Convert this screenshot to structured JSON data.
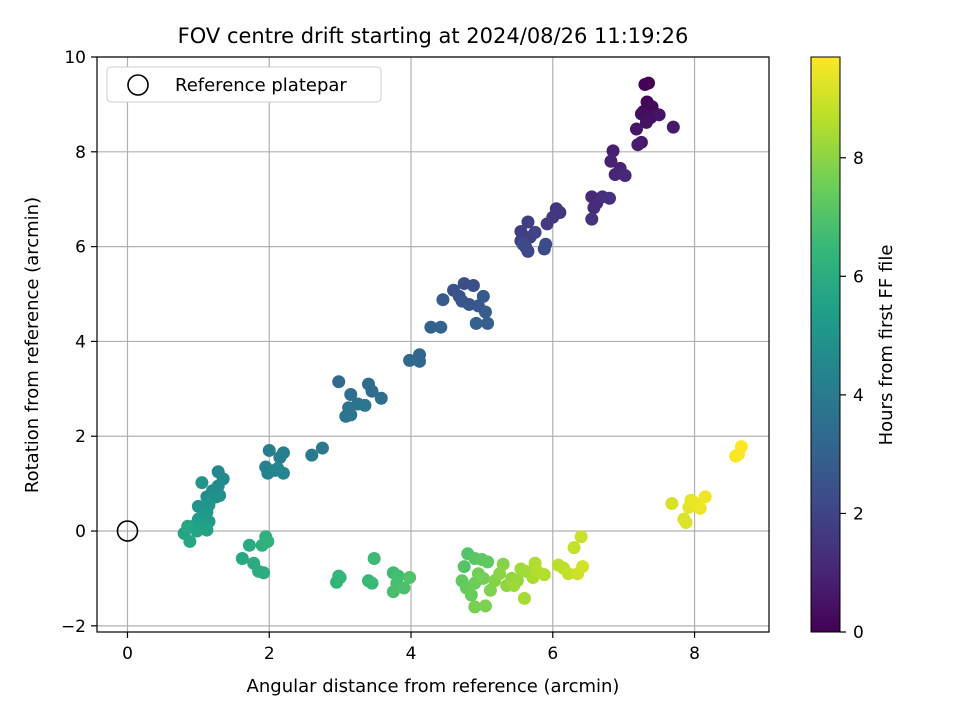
{
  "chart_data": {
    "type": "scatter",
    "title": "FOV centre drift starting at 2024/08/26 11:19:26",
    "xlabel": "Angular distance from reference (arcmin)",
    "ylabel": "Rotation from reference (arcmin)",
    "xlim": [
      -0.43,
      9.05
    ],
    "ylim": [
      -2.13,
      10.0
    ],
    "xticks": [
      0,
      2,
      4,
      6,
      8
    ],
    "yticks": [
      -2,
      0,
      2,
      4,
      6,
      8,
      10
    ],
    "xtick_labels": [
      "0",
      "2",
      "4",
      "6",
      "8"
    ],
    "ytick_labels": [
      "−2",
      "0",
      "2",
      "4",
      "6",
      "8",
      "10"
    ],
    "grid": true,
    "legend": {
      "placement": "top-left",
      "entries": [
        "Reference platepar"
      ]
    },
    "reference": {
      "x": 0,
      "y": 0
    },
    "colorbar": {
      "label": "Hours from first FF file",
      "colormap": "viridis",
      "range": [
        0,
        9.7
      ],
      "ticks": [
        0,
        2,
        4,
        6,
        8
      ],
      "tick_labels": [
        "0",
        "2",
        "4",
        "6",
        "8"
      ],
      "stops": [
        "#440154",
        "#482878",
        "#3e4989",
        "#31688e",
        "#26828e",
        "#1f9e89",
        "#35b779",
        "#6ece58",
        "#b5de2b",
        "#fde725"
      ]
    },
    "series": [
      {
        "points": [
          [
            7.35,
            9.45
          ],
          [
            7.3,
            9.42
          ],
          [
            7.33,
            9.05
          ],
          [
            7.28,
            8.85
          ],
          [
            7.4,
            8.95
          ],
          [
            7.45,
            8.8
          ],
          [
            7.25,
            8.8
          ],
          [
            7.38,
            8.72
          ],
          [
            7.32,
            8.62
          ],
          [
            7.5,
            8.78
          ],
          [
            7.18,
            8.48
          ],
          [
            7.7,
            8.52
          ],
          [
            7.25,
            8.2
          ],
          [
            7.2,
            8.15
          ],
          [
            6.85,
            8.02
          ],
          [
            6.82,
            7.8
          ],
          [
            6.95,
            7.65
          ],
          [
            6.88,
            7.52
          ],
          [
            7.02,
            7.5
          ],
          [
            6.55,
            7.05
          ],
          [
            6.62,
            6.92
          ],
          [
            6.58,
            6.82
          ],
          [
            6.7,
            7.05
          ],
          [
            6.8,
            7.02
          ],
          [
            6.55,
            6.58
          ],
          [
            6.05,
            6.8
          ],
          [
            6.1,
            6.72
          ],
          [
            6.0,
            6.62
          ],
          [
            5.92,
            6.48
          ],
          [
            5.65,
            6.52
          ],
          [
            5.55,
            6.32
          ],
          [
            5.55,
            6.12
          ],
          [
            5.68,
            6.2
          ],
          [
            5.75,
            6.3
          ],
          [
            5.62,
            5.98
          ],
          [
            5.65,
            5.9
          ],
          [
            5.58,
            6.05
          ],
          [
            5.88,
            5.95
          ],
          [
            5.9,
            6.05
          ],
          [
            4.75,
            5.22
          ],
          [
            4.88,
            5.18
          ],
          [
            4.6,
            5.08
          ],
          [
            4.68,
            4.95
          ],
          [
            4.72,
            4.85
          ],
          [
            4.82,
            4.78
          ],
          [
            4.95,
            4.75
          ],
          [
            5.02,
            4.95
          ],
          [
            4.45,
            4.88
          ],
          [
            5.05,
            4.62
          ],
          [
            5.08,
            4.38
          ],
          [
            4.92,
            4.38
          ],
          [
            4.28,
            4.3
          ],
          [
            4.42,
            4.3
          ],
          [
            4.12,
            3.72
          ],
          [
            4.12,
            3.58
          ],
          [
            3.98,
            3.6
          ],
          [
            2.98,
            3.15
          ],
          [
            3.4,
            3.1
          ],
          [
            3.45,
            2.95
          ],
          [
            3.58,
            2.8
          ],
          [
            3.15,
            2.88
          ],
          [
            3.25,
            2.68
          ],
          [
            3.12,
            2.6
          ],
          [
            3.08,
            2.42
          ],
          [
            3.15,
            2.45
          ],
          [
            3.35,
            2.65
          ],
          [
            2.75,
            1.75
          ],
          [
            2.6,
            1.6
          ],
          [
            2.0,
            1.7
          ],
          [
            2.2,
            1.65
          ],
          [
            2.15,
            1.55
          ],
          [
            1.95,
            1.35
          ],
          [
            1.98,
            1.22
          ],
          [
            2.08,
            1.28
          ],
          [
            2.2,
            1.22
          ],
          [
            2.12,
            1.32
          ],
          [
            1.28,
            1.25
          ],
          [
            1.35,
            1.1
          ],
          [
            1.28,
            0.95
          ],
          [
            1.2,
            0.85
          ],
          [
            1.12,
            0.72
          ],
          [
            1.25,
            0.72
          ],
          [
            1.3,
            0.75
          ],
          [
            1.08,
            0.48
          ],
          [
            1.0,
            0.52
          ],
          [
            1.15,
            0.55
          ],
          [
            1.05,
            1.02
          ],
          [
            1.12,
            0.4
          ],
          [
            1.0,
            0.25
          ],
          [
            1.08,
            0.18
          ],
          [
            1.15,
            0.2
          ],
          [
            0.95,
            0.12
          ],
          [
            1.05,
            0.05
          ],
          [
            1.12,
            0.02
          ],
          [
            0.98,
            0.0
          ],
          [
            0.8,
            -0.05
          ],
          [
            0.85,
            0.1
          ],
          [
            0.88,
            -0.22
          ],
          [
            1.62,
            -0.58
          ],
          [
            1.72,
            -0.3
          ],
          [
            1.78,
            -0.68
          ],
          [
            1.85,
            -0.85
          ],
          [
            1.92,
            -0.88
          ],
          [
            1.9,
            -0.3
          ],
          [
            1.95,
            -0.12
          ],
          [
            1.98,
            -0.22
          ],
          [
            2.95,
            -1.08
          ],
          [
            2.98,
            -0.95
          ],
          [
            3.0,
            -0.98
          ],
          [
            3.4,
            -1.05
          ],
          [
            3.45,
            -1.1
          ],
          [
            3.48,
            -0.58
          ],
          [
            3.75,
            -0.88
          ],
          [
            3.82,
            -0.95
          ],
          [
            3.8,
            -1.1
          ],
          [
            3.75,
            -1.28
          ],
          [
            3.9,
            -1.2
          ],
          [
            3.98,
            -0.98
          ],
          [
            4.8,
            -0.48
          ],
          [
            4.75,
            -0.75
          ],
          [
            4.9,
            -0.58
          ],
          [
            5.0,
            -0.6
          ],
          [
            5.08,
            -0.65
          ],
          [
            4.72,
            -1.05
          ],
          [
            4.78,
            -1.2
          ],
          [
            4.85,
            -1.35
          ],
          [
            4.9,
            -1.1
          ],
          [
            4.95,
            -0.9
          ],
          [
            5.02,
            -1.0
          ],
          [
            4.9,
            -1.6
          ],
          [
            5.05,
            -1.58
          ],
          [
            5.12,
            -1.25
          ],
          [
            5.18,
            -1.05
          ],
          [
            5.3,
            -0.7
          ],
          [
            5.25,
            -0.9
          ],
          [
            5.35,
            -1.15
          ],
          [
            5.42,
            -1.0
          ],
          [
            5.5,
            -1.05
          ],
          [
            5.45,
            -1.15
          ],
          [
            5.55,
            -0.8
          ],
          [
            5.62,
            -0.85
          ],
          [
            5.6,
            -1.42
          ],
          [
            5.72,
            -0.98
          ],
          [
            5.75,
            -0.68
          ],
          [
            5.78,
            -0.85
          ],
          [
            5.88,
            -0.92
          ],
          [
            6.08,
            -0.72
          ],
          [
            6.15,
            -0.78
          ],
          [
            6.22,
            -0.9
          ],
          [
            6.3,
            -0.35
          ],
          [
            6.4,
            -0.12
          ],
          [
            6.35,
            -0.9
          ],
          [
            6.42,
            -0.75
          ],
          [
            7.68,
            0.58
          ],
          [
            7.85,
            0.25
          ],
          [
            7.88,
            0.18
          ],
          [
            7.92,
            0.5
          ],
          [
            7.95,
            0.65
          ],
          [
            8.0,
            0.6
          ],
          [
            8.08,
            0.48
          ],
          [
            8.15,
            0.72
          ],
          [
            8.58,
            1.58
          ],
          [
            8.62,
            1.62
          ],
          [
            8.66,
            1.78
          ]
        ]
      }
    ]
  }
}
